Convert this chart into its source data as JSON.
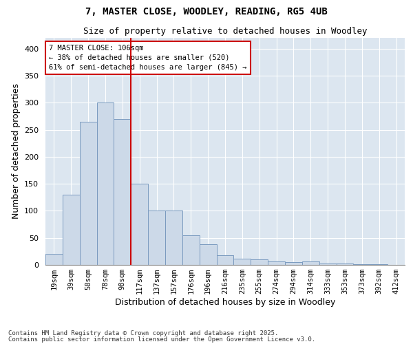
{
  "title": "7, MASTER CLOSE, WOODLEY, READING, RG5 4UB",
  "subtitle": "Size of property relative to detached houses in Woodley",
  "xlabel": "Distribution of detached houses by size in Woodley",
  "ylabel": "Number of detached properties",
  "bar_color": "#ccd9e8",
  "bar_edge_color": "#7a9abf",
  "background_color": "#dce6f0",
  "fig_background": "#ffffff",
  "grid_color": "#ffffff",
  "vline_color": "#cc0000",
  "categories": [
    "19sqm",
    "39sqm",
    "58sqm",
    "78sqm",
    "98sqm",
    "117sqm",
    "137sqm",
    "157sqm",
    "176sqm",
    "196sqm",
    "216sqm",
    "235sqm",
    "255sqm",
    "274sqm",
    "294sqm",
    "314sqm",
    "333sqm",
    "353sqm",
    "373sqm",
    "392sqm",
    "412sqm"
  ],
  "values": [
    20,
    130,
    265,
    300,
    270,
    150,
    100,
    100,
    55,
    38,
    18,
    12,
    10,
    7,
    5,
    6,
    2,
    3,
    1,
    1,
    0
  ],
  "ylim": [
    0,
    420
  ],
  "yticks": [
    0,
    50,
    100,
    150,
    200,
    250,
    300,
    350,
    400
  ],
  "annotation_line1": "7 MASTER CLOSE: 106sqm",
  "annotation_line2": "← 38% of detached houses are smaller (520)",
  "annotation_line3": "61% of semi-detached houses are larger (845) →",
  "footnote1": "Contains HM Land Registry data © Crown copyright and database right 2025.",
  "footnote2": "Contains public sector information licensed under the Open Government Licence v3.0."
}
